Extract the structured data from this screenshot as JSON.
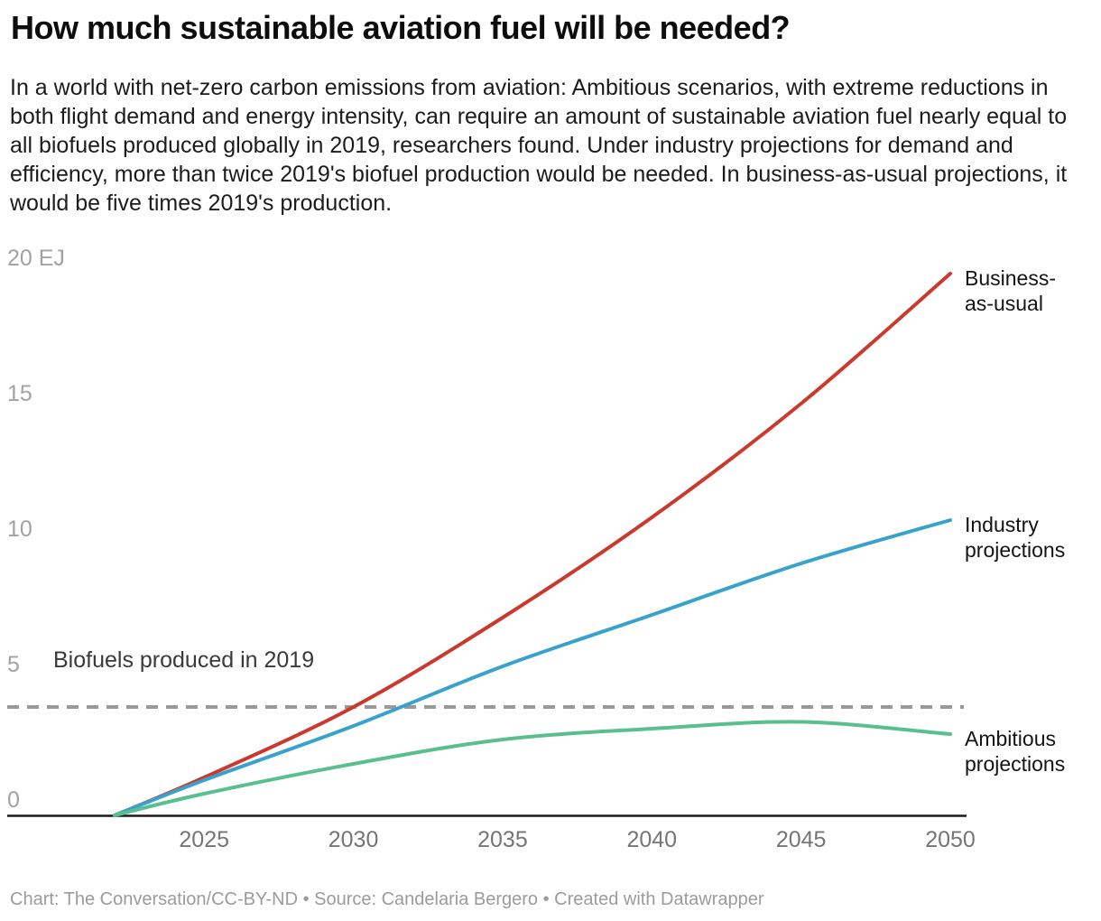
{
  "header": {
    "description": "In a world with net-zero carbon emissions from aviation: Ambitious scenarios, with extreme reductions in both flight demand and energy intensity, can require an amount of sustainable aviation fuel nearly equal to all biofuels produced globally in 2019, researchers found. Under industry projections for demand and efficiency, more than twice 2019's biofuel production would be needed. In business-as-usual projections, it would be five times 2019's production."
  },
  "footer": {
    "credit": "Chart: The Conversation/CC-BY-ND • Source: Candelaria Bergero • Created with Datawrapper"
  },
  "chart_data": {
    "type": "line",
    "title": "How much sustainable aviation fuel will be needed?",
    "unit": "EJ",
    "xlabel": "",
    "ylabel": "",
    "xlim": [
      2022,
      2050
    ],
    "ylim": [
      0,
      20
    ],
    "grid": "off",
    "legend_position": "labels-at-line-ends",
    "colors": {
      "axis": "#1a1a1a",
      "x_tick_text": "#757575",
      "y_tick_text": "#a2a2a2",
      "series_label_text": "#141414"
    },
    "x_ticks": [
      2025,
      2030,
      2035,
      2040,
      2045,
      2050
    ],
    "y_ticks": [
      {
        "value": 0,
        "label": "0"
      },
      {
        "value": 5,
        "label": "5"
      },
      {
        "value": 10,
        "label": "10"
      },
      {
        "value": 15,
        "label": "15"
      },
      {
        "value": 20,
        "label": "20 EJ"
      }
    ],
    "x": [
      2022,
      2025,
      2030,
      2035,
      2040,
      2045,
      2050
    ],
    "series": [
      {
        "name": "Business-as-usual",
        "label_lines": [
          "Business-",
          "as-usual"
        ],
        "color": "#cb392e",
        "values": [
          0,
          1.4,
          4.0,
          7.3,
          11.0,
          15.2,
          20.0
        ]
      },
      {
        "name": "Industry projections",
        "label_lines": [
          "Industry",
          "projections"
        ],
        "color": "#39a2cc",
        "values": [
          0,
          1.3,
          3.3,
          5.5,
          7.4,
          9.3,
          10.9
        ]
      },
      {
        "name": "Ambitious projections",
        "label_lines": [
          "Ambitious",
          "projections"
        ],
        "color": "#5abf8e",
        "values": [
          0,
          0.8,
          1.9,
          2.8,
          3.2,
          3.45,
          3.0
        ]
      }
    ],
    "reference_line": {
      "value": 4,
      "label": "Biofuels produced in 2019",
      "color": "#999999",
      "style": "dashed"
    }
  }
}
